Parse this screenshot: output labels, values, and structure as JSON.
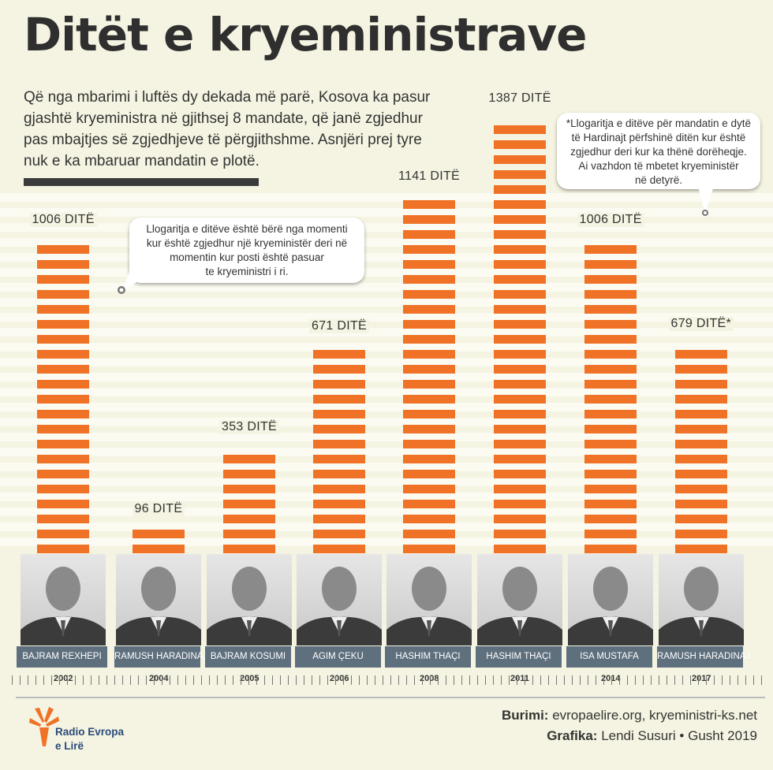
{
  "header": {
    "title": "Ditët e kryeministrave",
    "intro": "Që nga mbarimi i luftës dy dekada më parë, Kosova ka pasur gjashtë kryeministra në gjithsej 8 mandate, që janë zgjedhur pas mbajtjes së zgjedhjeve të përgjithshme. Asnjëri prej tyre nuk e ka mbaruar mandatin e plotë."
  },
  "notes": {
    "method_line1": "Llogaritja e ditëve është bërë nga momenti",
    "method_line2": "kur është zgjedhur një kryeministër deri në",
    "method_line3": "momentin kur posti është pasuar",
    "method_line4": "te kryeministri i ri.",
    "haradinaj_line1": "*Llogaritja e ditëve për mandatin e dytë",
    "haradinaj_line2": "të Hardinajt përfshinë ditën kur është",
    "haradinaj_line3": "zgjedhur deri kur ka thënë dorëheqje.",
    "haradinaj_line4": "Ai vazhdon të mbetet kryeministër",
    "haradinaj_line5": "në detyrë."
  },
  "chart_data": {
    "type": "bar",
    "title": "Ditët e kryeministrave",
    "unit": "DITË",
    "categories": [
      "BAJRAM REXHEPI",
      "RAMUSH HARADINAJ",
      "BAJRAM KOSUMI",
      "AGIM ÇEKU",
      "HASHIM THAÇI",
      "HASHIM THAÇI",
      "ISA MUSTAFA",
      "RAMUSH HARADINAJ"
    ],
    "years": [
      "2002",
      "2004",
      "2005",
      "2006",
      "2008",
      "2011",
      "2014",
      "2017"
    ],
    "values": [
      1006,
      96,
      353,
      671,
      1141,
      1387,
      1006,
      679
    ],
    "value_labels": [
      "1006 DITË",
      "96 DITË",
      "353 DITË",
      "671 DITË",
      "1141 DITË",
      "1387 DITË",
      "1006 DITË",
      "679 DITË*"
    ],
    "ylim": [
      0,
      1387
    ],
    "colors": {
      "bar": "#f07226",
      "name_band": "#5e6f7d"
    }
  },
  "footer": {
    "source_label": "Burimi:",
    "source_value": "evropaelire.org, kryeministri-ks.net",
    "graphics_label": "Grafika:",
    "graphics_value": "Lendi Susuri • Gusht 2019",
    "brand_line1": "Radio Evropa",
    "brand_line2": "e Lirë"
  }
}
